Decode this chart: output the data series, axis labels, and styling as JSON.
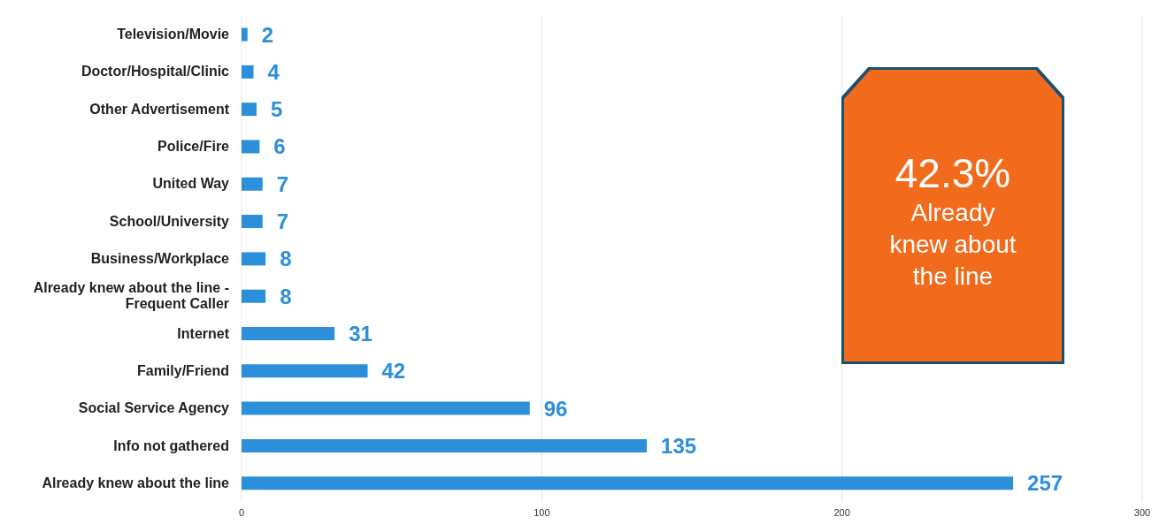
{
  "chart_data": {
    "type": "bar",
    "orientation": "horizontal",
    "categories": [
      "Television/Movie",
      "Doctor/Hospital/Clinic",
      "Other Advertisement",
      "Police/Fire",
      "United Way",
      "School/University",
      "Business/Workplace",
      "Already knew about the line - Frequent Caller",
      "Internet",
      "Family/Friend",
      "Social Service Agency",
      "Info not gathered",
      "Already knew about the line"
    ],
    "values": [
      2,
      4,
      5,
      6,
      7,
      7,
      8,
      8,
      31,
      42,
      96,
      135,
      257
    ],
    "color": "#2b8fd9",
    "xlim": [
      0,
      300
    ],
    "xticks": [
      0,
      100,
      200,
      300
    ],
    "grid": "x",
    "data_labels": true,
    "annotations": [
      "42.3%",
      "Already knew about the line"
    ]
  }
}
